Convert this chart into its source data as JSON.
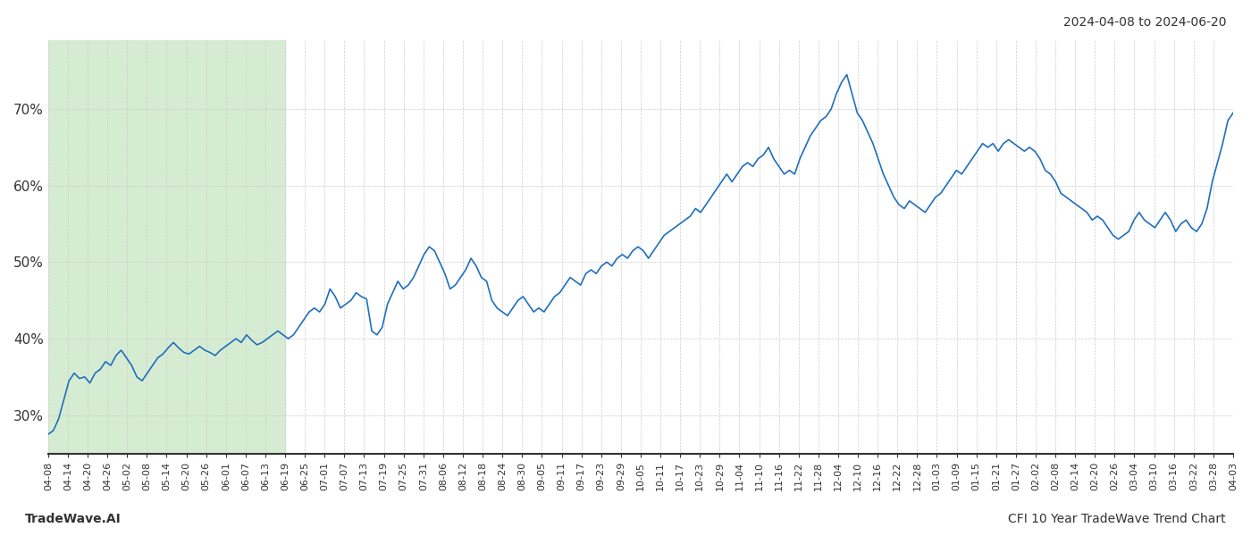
{
  "title_top_right": "2024-04-08 to 2024-06-20",
  "title_bottom_left": "TradeWave.AI",
  "title_bottom_right": "CFI 10 Year TradeWave Trend Chart",
  "line_color": "#1f6fbd",
  "line_width": 1.2,
  "shade_color": "#d6ecd2",
  "shade_start_label": "04-08",
  "shade_end_label": "06-19",
  "ymin": 25,
  "ymax": 79,
  "yticks": [
    30,
    40,
    50,
    60,
    70
  ],
  "x_labels": [
    "04-08",
    "04-14",
    "04-20",
    "04-26",
    "05-02",
    "05-08",
    "05-14",
    "05-20",
    "05-26",
    "06-01",
    "06-07",
    "06-13",
    "06-19",
    "06-25",
    "07-01",
    "07-07",
    "07-13",
    "07-19",
    "07-25",
    "07-31",
    "08-06",
    "08-12",
    "08-18",
    "08-24",
    "08-30",
    "09-05",
    "09-11",
    "09-17",
    "09-23",
    "09-29",
    "10-05",
    "10-11",
    "10-17",
    "10-23",
    "10-29",
    "11-04",
    "11-10",
    "11-16",
    "11-22",
    "11-28",
    "12-04",
    "12-10",
    "12-16",
    "12-22",
    "12-28",
    "01-03",
    "01-09",
    "01-15",
    "01-21",
    "01-27",
    "02-02",
    "02-08",
    "02-14",
    "02-20",
    "02-26",
    "03-04",
    "03-10",
    "03-16",
    "03-22",
    "03-28",
    "04-03"
  ],
  "y_values": [
    27.5,
    28.0,
    29.5,
    32.0,
    34.5,
    35.5,
    34.8,
    35.0,
    34.2,
    35.5,
    36.0,
    37.0,
    36.5,
    37.8,
    38.5,
    37.5,
    36.5,
    35.0,
    34.5,
    35.5,
    36.5,
    37.5,
    38.0,
    38.8,
    39.5,
    38.8,
    38.2,
    38.0,
    38.5,
    39.0,
    38.5,
    38.2,
    37.8,
    38.5,
    39.0,
    39.5,
    40.0,
    39.5,
    40.5,
    39.8,
    39.2,
    39.5,
    40.0,
    40.5,
    41.0,
    40.5,
    40.0,
    40.5,
    41.5,
    42.5,
    43.5,
    44.0,
    43.5,
    44.5,
    46.5,
    45.5,
    44.0,
    44.5,
    45.0,
    46.0,
    45.5,
    45.2,
    41.0,
    40.5,
    41.5,
    44.5,
    46.0,
    47.5,
    46.5,
    47.0,
    48.0,
    49.5,
    51.0,
    52.0,
    51.5,
    50.0,
    48.5,
    46.5,
    47.0,
    48.0,
    49.0,
    50.5,
    49.5,
    48.0,
    47.5,
    45.0,
    44.0,
    43.5,
    43.0,
    44.0,
    45.0,
    45.5,
    44.5,
    43.5,
    44.0,
    43.5,
    44.5,
    45.5,
    46.0,
    47.0,
    48.0,
    47.5,
    47.0,
    48.5,
    49.0,
    48.5,
    49.5,
    50.0,
    49.5,
    50.5,
    51.0,
    50.5,
    51.5,
    52.0,
    51.5,
    50.5,
    51.5,
    52.5,
    53.5,
    54.0,
    54.5,
    55.0,
    55.5,
    56.0,
    57.0,
    56.5,
    57.5,
    58.5,
    59.5,
    60.5,
    61.5,
    60.5,
    61.5,
    62.5,
    63.0,
    62.5,
    63.5,
    64.0,
    65.0,
    63.5,
    62.5,
    61.5,
    62.0,
    61.5,
    63.5,
    65.0,
    66.5,
    67.5,
    68.5,
    69.0,
    70.0,
    72.0,
    73.5,
    74.5,
    72.0,
    69.5,
    68.5,
    67.0,
    65.5,
    63.5,
    61.5,
    60.0,
    58.5,
    57.5,
    57.0,
    58.0,
    57.5,
    57.0,
    56.5,
    57.5,
    58.5,
    59.0,
    60.0,
    61.0,
    62.0,
    61.5,
    62.5,
    63.5,
    64.5,
    65.5,
    65.0,
    65.5,
    64.5,
    65.5,
    66.0,
    65.5,
    65.0,
    64.5,
    65.0,
    64.5,
    63.5,
    62.0,
    61.5,
    60.5,
    59.0,
    58.5,
    58.0,
    57.5,
    57.0,
    56.5,
    55.5,
    56.0,
    55.5,
    54.5,
    53.5,
    53.0,
    53.5,
    54.0,
    55.5,
    56.5,
    55.5,
    55.0,
    54.5,
    55.5,
    56.5,
    55.5,
    54.0,
    55.0,
    55.5,
    54.5,
    54.0,
    55.0,
    57.0,
    60.5,
    63.0,
    65.5,
    68.5,
    69.5
  ],
  "grid_color": "#cccccc",
  "bg_color": "#ffffff",
  "text_color": "#333333",
  "font_size_ticks": 8,
  "font_size_bottom": 10
}
